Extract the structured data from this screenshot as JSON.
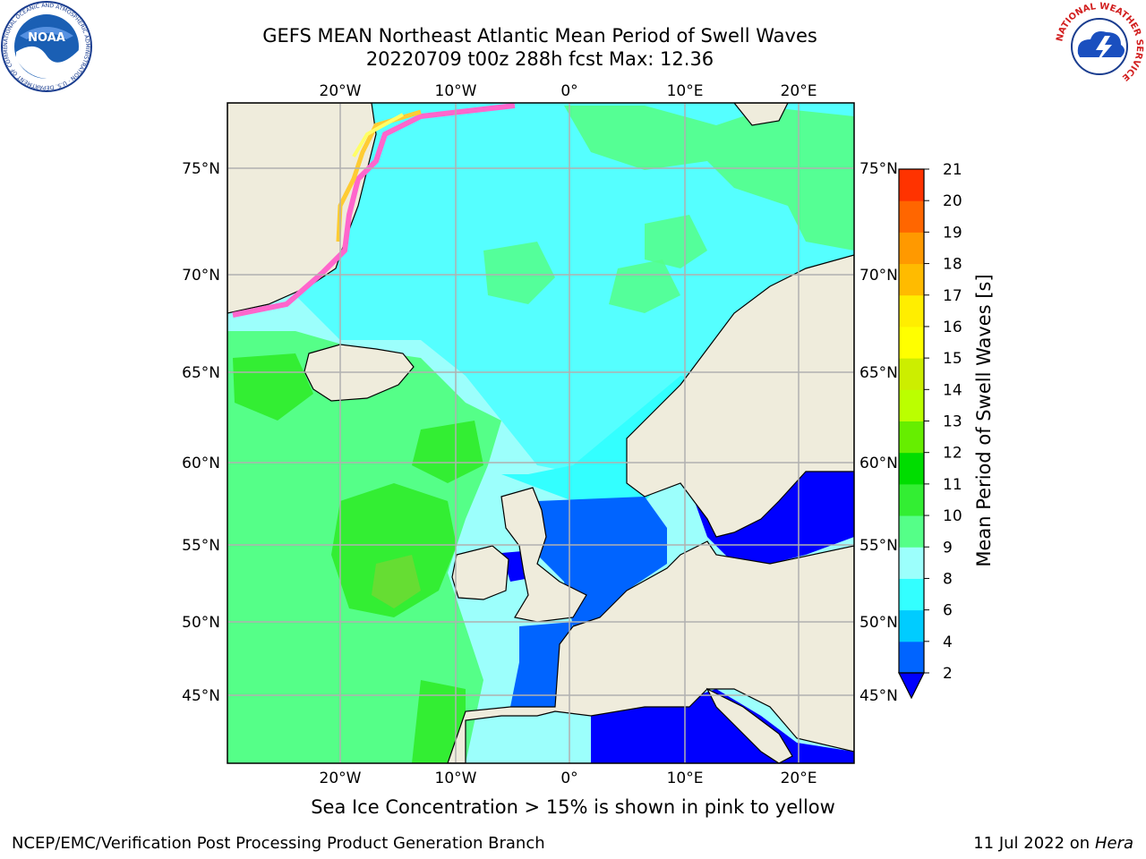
{
  "header": {
    "title": "GEFS MEAN Northeast Atlantic Mean Period of Swell Waves",
    "subtitle": "20220709 t00z 288h fcst   Max: 12.36"
  },
  "map": {
    "lon_labels": [
      "20°W",
      "10°W",
      "0°",
      "10°E",
      "20°E"
    ],
    "lat_labels": [
      "75°N",
      "70°N",
      "65°N",
      "60°N",
      "55°N",
      "50°N",
      "45°N"
    ],
    "lon_values": [
      -20,
      -10,
      0,
      10,
      20
    ],
    "lat_values": [
      75,
      70,
      65,
      60,
      55,
      50,
      45
    ],
    "land_color": "#efecdc",
    "ocean_color": "#9cfffc",
    "grid_color": "#b0b0b0",
    "ice_colors": [
      "#ff66cc",
      "#ffcc33",
      "#ffff66"
    ]
  },
  "colorbar": {
    "label": "Mean Period of Swell Waves [s]",
    "ticks": [
      "2",
      "4",
      "6",
      "8",
      "9",
      "10",
      "11",
      "12",
      "13",
      "14",
      "15",
      "16",
      "17",
      "18",
      "19",
      "20",
      "21"
    ],
    "colors": [
      "#0064ff",
      "#00ccff",
      "#33ffff",
      "#9cfffc",
      "#55ff88",
      "#33ee33",
      "#00dd00",
      "#66ee00",
      "#bbff00",
      "#ccee00",
      "#ffff00",
      "#ffee00",
      "#ffbb00",
      "#ff9900",
      "#ff6600",
      "#ff3300",
      "#ff0000"
    ],
    "extend_color": "#0000ff"
  },
  "caption": "Sea Ice Concentration > 15% is shown in pink to yellow",
  "footer": {
    "left": "NCEP/EMC/Verification Post Processing Product Generation Branch",
    "date": "11 Jul 2022 on ",
    "machine": "Hera"
  },
  "logos": {
    "noaa_text": "NOAA",
    "noaa_ring": "NATIONAL OCEANIC AND ATMOSPHERIC ADMINISTRATION · U.S. DEPARTMENT OF COMMERCE",
    "nws_ring": "NATIONAL WEATHER SERVICE"
  }
}
